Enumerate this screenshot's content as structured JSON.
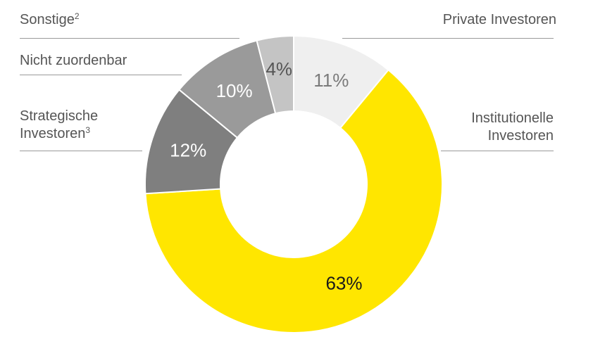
{
  "chart_data": {
    "type": "pie",
    "variant": "donut",
    "categories": [
      "Private Investoren",
      "Institutionelle Investoren",
      "Strategische Investoren",
      "Nicht zuordenbar",
      "Sonstige"
    ],
    "values": [
      11,
      63,
      12,
      10,
      4
    ],
    "value_labels": [
      "11%",
      "63%",
      "12%",
      "10%",
      "4%"
    ],
    "label_footnotes": [
      "",
      "",
      "3",
      "",
      "2"
    ],
    "colors": [
      "#efefef",
      "#ffe600",
      "#7f7f7f",
      "#9a9a9a",
      "#c4c4c4"
    ],
    "value_label_colors": [
      "#7a7a7a",
      "#1a1a1a",
      "#ffffff",
      "#ffffff",
      "#555555"
    ],
    "start_angle_deg": 0,
    "direction": "clockwise",
    "legend": "leader-labels"
  },
  "labels": {
    "sonstige": "Sonstige",
    "sonstige_note": "2",
    "nicht_zuordenbar": "Nicht zuordenbar",
    "strategische_line1": "Strategische",
    "strategische_line2": "Investoren",
    "strategische_note": "3",
    "private": "Private Investoren",
    "institutionelle_line1": "Institutionelle",
    "institutionelle_line2": "Investoren"
  }
}
